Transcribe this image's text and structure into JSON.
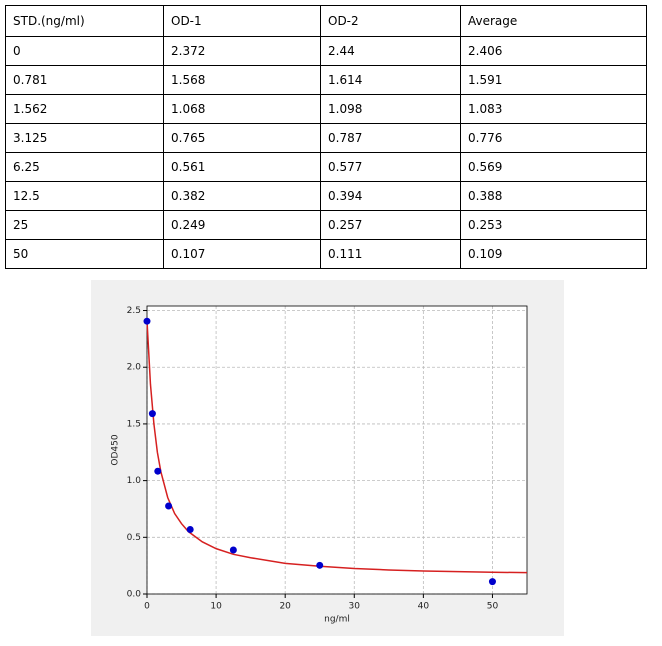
{
  "table": {
    "header": [
      "STD.(ng/ml)",
      "OD-1",
      "OD-2",
      "Average"
    ],
    "rows": [
      [
        "0",
        "2.372",
        "2.44",
        "2.406"
      ],
      [
        "0.781",
        "1.568",
        "1.614",
        "1.591"
      ],
      [
        "1.562",
        "1.068",
        "1.098",
        "1.083"
      ],
      [
        "3.125",
        "0.765",
        "0.787",
        "0.776"
      ],
      [
        "6.25",
        "0.561",
        "0.577",
        "0.569"
      ],
      [
        "12.5",
        "0.382",
        "0.394",
        "0.388"
      ],
      [
        "25",
        "0.249",
        "0.257",
        "0.253"
      ],
      [
        "50",
        "0.107",
        "0.111",
        "0.109"
      ]
    ]
  },
  "chart_data": {
    "type": "scatter",
    "x_label": "ng/ml",
    "y_label": "OD450",
    "xlim": [
      0,
      55
    ],
    "xticks": [
      0,
      10,
      20,
      30,
      40,
      50
    ],
    "ylim": [
      0,
      2.54
    ],
    "yticks": [
      {
        "value": 0,
        "label": "0.0"
      },
      {
        "value": 0.5,
        "label": "0.5"
      },
      {
        "value": 1,
        "label": "1.0"
      },
      {
        "value": 1.5,
        "label": "1.5"
      },
      {
        "value": 2,
        "label": "2.0"
      },
      {
        "value": 2.5,
        "label": "2.5"
      }
    ],
    "grid": true,
    "series": [
      {
        "type": "scatter",
        "color": "#0000cc",
        "x": [
          0,
          0.781,
          1.562,
          3.125,
          6.25,
          12.5,
          25,
          50
        ],
        "values": [
          2.406,
          1.591,
          1.083,
          0.776,
          0.569,
          0.388,
          0.253,
          0.109
        ]
      },
      {
        "type": "line",
        "color": "#d62020",
        "x": [
          0,
          0.5,
          1,
          1.5,
          2,
          3,
          4,
          5,
          6,
          8,
          10,
          12.5,
          15,
          20,
          25,
          30,
          35,
          40,
          45,
          50,
          55
        ],
        "values": [
          2.41,
          1.85,
          1.5,
          1.25,
          1.08,
          0.85,
          0.71,
          0.62,
          0.55,
          0.46,
          0.4,
          0.35,
          0.32,
          0.27,
          0.245,
          0.225,
          0.212,
          0.203,
          0.197,
          0.192,
          0.188
        ]
      }
    ]
  }
}
